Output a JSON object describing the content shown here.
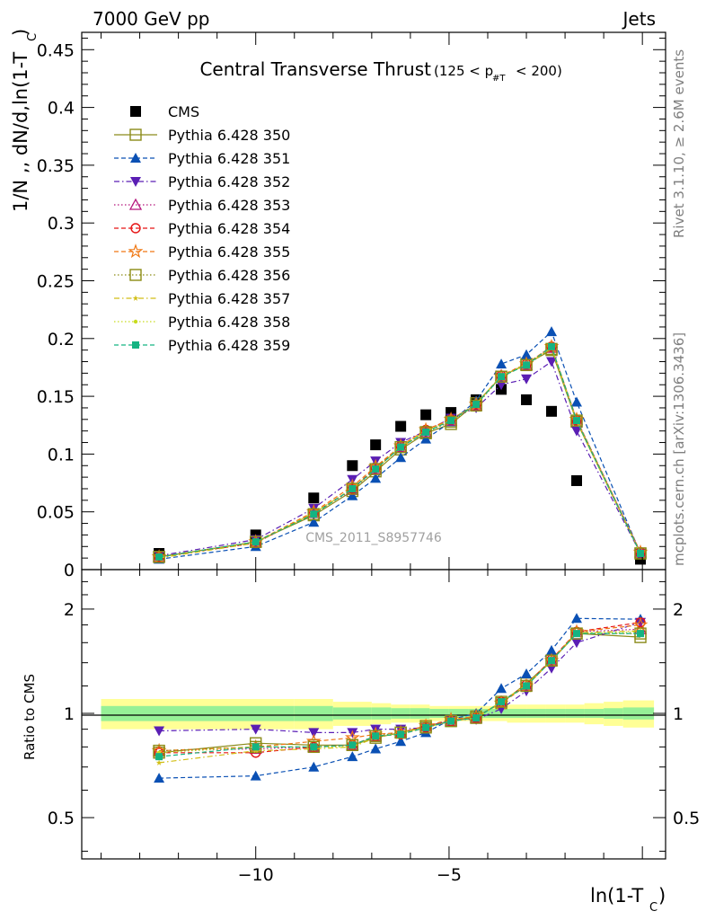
{
  "header": {
    "left": "7000 GeV pp",
    "right": "Jets",
    "side_top": "Rivet 3.1.10, ≥ 2.6M events",
    "side_bottom": "mcplots.cern.ch [arXiv:1306.3436]",
    "watermark": "CMS_2011_S8957746"
  },
  "chart_data": [
    {
      "type": "scatter",
      "title": "Central Transverse Thrust",
      "subtitle": "(125 < p#T < 200)",
      "xlabel": "ln(1-T_C)",
      "ylabel": "1/N ,, dN/d,ln(1-T_C)",
      "ylim": [
        0,
        0.465
      ],
      "xlim": [
        -14.5,
        0.6
      ],
      "yticks": [
        0,
        0.05,
        0.1,
        0.15,
        0.2,
        0.25,
        0.3,
        0.35,
        0.4,
        0.45
      ],
      "ytick_labels": [
        "0",
        "0.05",
        "0.1",
        "0.15",
        "0.2",
        "0.25",
        "0.3",
        "0.35",
        "0.4",
        "0.45"
      ],
      "x": [
        -12.5,
        -10.0,
        -8.5,
        -7.5,
        -6.9,
        -6.25,
        -5.6,
        -4.95,
        -4.3,
        -3.65,
        -3.0,
        -2.35,
        -1.7,
        -0.05
      ],
      "series": [
        {
          "name": "CMS",
          "color": "#000000",
          "marker": "square-filled",
          "line": "none",
          "values": [
            0.014,
            0.03,
            0.062,
            0.09,
            0.108,
            0.124,
            0.134,
            0.136,
            0.147,
            0.156,
            0.147,
            0.137,
            0.077,
            0.009
          ]
        },
        {
          "name": "Pythia 6.428 350",
          "color": "#8b8b1a",
          "marker": "square-open",
          "line": "solid",
          "values": [
            0.011,
            0.024,
            0.047,
            0.068,
            0.085,
            0.104,
            0.118,
            0.126,
            0.144,
            0.167,
            0.178,
            0.19,
            0.128,
            0.014
          ]
        },
        {
          "name": "Pythia 6.428 351",
          "color": "#0a50b4",
          "marker": "triangle-up",
          "line": "dashed",
          "values": [
            0.009,
            0.02,
            0.041,
            0.064,
            0.079,
            0.097,
            0.113,
            0.128,
            0.146,
            0.178,
            0.186,
            0.206,
            0.145,
            0.014
          ]
        },
        {
          "name": "Pythia 6.428 352",
          "color": "#5a1eb4",
          "marker": "triangle-down",
          "line": "dashdot",
          "values": [
            0.012,
            0.026,
            0.053,
            0.078,
            0.094,
            0.11,
            0.12,
            0.131,
            0.14,
            0.16,
            0.165,
            0.18,
            0.12,
            0.014
          ]
        },
        {
          "name": "Pythia 6.428 353",
          "color": "#b4147c",
          "marker": "triangle-open",
          "line": "dotted",
          "values": [
            0.011,
            0.024,
            0.049,
            0.069,
            0.087,
            0.106,
            0.119,
            0.129,
            0.142,
            0.168,
            0.177,
            0.192,
            0.13,
            0.015
          ]
        },
        {
          "name": "Pythia 6.428 354",
          "color": "#e61414",
          "marker": "circle-open",
          "line": "dashed",
          "values": [
            0.011,
            0.023,
            0.049,
            0.07,
            0.088,
            0.107,
            0.121,
            0.13,
            0.143,
            0.168,
            0.178,
            0.193,
            0.129,
            0.015
          ]
        },
        {
          "name": "Pythia 6.428 355",
          "color": "#f07814",
          "marker": "star-open",
          "line": "dashed",
          "values": [
            0.011,
            0.024,
            0.05,
            0.072,
            0.089,
            0.107,
            0.121,
            0.13,
            0.143,
            0.167,
            0.178,
            0.193,
            0.13,
            0.015
          ]
        },
        {
          "name": "Pythia 6.428 356",
          "color": "#8c8c14",
          "marker": "square-open",
          "line": "dotted",
          "values": [
            0.011,
            0.024,
            0.048,
            0.07,
            0.087,
            0.106,
            0.119,
            0.128,
            0.142,
            0.167,
            0.177,
            0.191,
            0.129,
            0.014
          ]
        },
        {
          "name": "Pythia 6.428 357",
          "color": "#d2be14",
          "marker": "star-small",
          "line": "dashdot",
          "values": [
            0.01,
            0.023,
            0.049,
            0.07,
            0.087,
            0.106,
            0.12,
            0.129,
            0.143,
            0.168,
            0.177,
            0.192,
            0.128,
            0.014
          ]
        },
        {
          "name": "Pythia 6.428 358",
          "color": "#c8dc1e",
          "marker": "dot",
          "line": "dotted",
          "values": [
            0.011,
            0.024,
            0.049,
            0.07,
            0.087,
            0.107,
            0.12,
            0.129,
            0.143,
            0.168,
            0.178,
            0.192,
            0.129,
            0.014
          ]
        },
        {
          "name": "Pythia 6.428 359",
          "color": "#14b482",
          "marker": "square-filled-small",
          "line": "dashed",
          "values": [
            0.011,
            0.024,
            0.048,
            0.07,
            0.087,
            0.106,
            0.119,
            0.129,
            0.143,
            0.167,
            0.177,
            0.193,
            0.129,
            0.014
          ]
        }
      ]
    },
    {
      "type": "scatter",
      "ylabel": "Ratio to CMS",
      "xlabel": "ln(1-T_C)",
      "ylim": [
        0.38,
        2.6
      ],
      "yscale": "log",
      "yticks": [
        0.5,
        1,
        2
      ],
      "ytick_labels": [
        "0.5",
        "1",
        "2"
      ],
      "xticks": [
        -10,
        -5
      ],
      "xtick_labels": [
        "−10",
        "−5"
      ],
      "bands": {
        "bin_edges": [
          -14.0,
          -9.0,
          -8.0,
          -7.0,
          -6.5,
          -6.0,
          -5.5,
          -5.0,
          -4.5,
          -4.0,
          -3.5,
          -3.0,
          -2.5,
          -2.0,
          -1.5,
          -1.0,
          -0.5,
          0.3
        ],
        "stat_lo": [
          0.95,
          0.95,
          0.96,
          0.96,
          0.965,
          0.965,
          0.97,
          0.97,
          0.97,
          0.97,
          0.97,
          0.97,
          0.97,
          0.97,
          0.97,
          0.965,
          0.96
        ],
        "stat_hi": [
          1.05,
          1.05,
          1.04,
          1.04,
          1.035,
          1.035,
          1.03,
          1.03,
          1.03,
          1.03,
          1.03,
          1.03,
          1.03,
          1.03,
          1.03,
          1.035,
          1.04
        ],
        "total_lo": [
          0.9,
          0.9,
          0.92,
          0.93,
          0.94,
          0.94,
          0.95,
          0.95,
          0.95,
          0.95,
          0.94,
          0.94,
          0.94,
          0.94,
          0.93,
          0.92,
          0.91
        ],
        "total_hi": [
          1.1,
          1.1,
          1.08,
          1.07,
          1.06,
          1.06,
          1.05,
          1.05,
          1.05,
          1.05,
          1.06,
          1.06,
          1.06,
          1.06,
          1.07,
          1.08,
          1.09
        ],
        "stat_color": "#96f096",
        "total_color": "#ffff96"
      },
      "x": [
        -12.5,
        -10.0,
        -8.5,
        -7.5,
        -6.9,
        -6.25,
        -5.6,
        -4.95,
        -4.3,
        -3.65,
        -3.0,
        -2.35,
        -1.7,
        -0.05
      ],
      "series": [
        {
          "name": "Pythia 6.428 350",
          "color": "#8b8b1a",
          "marker": "square-open",
          "line": "solid",
          "values": [
            0.77,
            0.82,
            0.81,
            0.81,
            0.85,
            0.88,
            0.92,
            0.95,
            0.98,
            1.07,
            1.22,
            1.42,
            1.7,
            1.66
          ]
        },
        {
          "name": "Pythia 6.428 351",
          "color": "#0a50b4",
          "marker": "triangle-up",
          "line": "dashed",
          "values": [
            0.65,
            0.66,
            0.7,
            0.75,
            0.79,
            0.83,
            0.88,
            0.96,
            1.0,
            1.18,
            1.3,
            1.52,
            1.88,
            1.87
          ]
        },
        {
          "name": "Pythia 6.428 352",
          "color": "#5a1eb4",
          "marker": "triangle-down",
          "line": "dashdot",
          "values": [
            0.89,
            0.9,
            0.88,
            0.88,
            0.9,
            0.9,
            0.91,
            0.96,
            0.96,
            1.03,
            1.16,
            1.35,
            1.6,
            1.83
          ]
        },
        {
          "name": "Pythia 6.428 353",
          "color": "#b4147c",
          "marker": "triangle-open",
          "line": "dotted",
          "values": [
            0.78,
            0.79,
            0.8,
            0.81,
            0.86,
            0.88,
            0.92,
            0.95,
            0.97,
            1.08,
            1.2,
            1.42,
            1.72,
            1.75
          ]
        },
        {
          "name": "Pythia 6.428 354",
          "color": "#e61414",
          "marker": "circle-open",
          "line": "dashed",
          "values": [
            0.77,
            0.77,
            0.8,
            0.81,
            0.86,
            0.87,
            0.91,
            0.95,
            0.97,
            1.08,
            1.21,
            1.43,
            1.72,
            1.83
          ]
        },
        {
          "name": "Pythia 6.428 355",
          "color": "#f07814",
          "marker": "star-open",
          "line": "dashed",
          "values": [
            0.78,
            0.8,
            0.83,
            0.85,
            0.87,
            0.88,
            0.92,
            0.96,
            0.98,
            1.07,
            1.2,
            1.42,
            1.72,
            1.8
          ]
        },
        {
          "name": "Pythia 6.428 356",
          "color": "#8c8c14",
          "marker": "square-open",
          "line": "dotted",
          "values": [
            0.78,
            0.8,
            0.8,
            0.81,
            0.86,
            0.88,
            0.91,
            0.95,
            0.97,
            1.08,
            1.2,
            1.42,
            1.7,
            1.7
          ]
        },
        {
          "name": "Pythia 6.428 357",
          "color": "#d2be14",
          "marker": "star-small",
          "line": "dashdot",
          "values": [
            0.72,
            0.78,
            0.79,
            0.8,
            0.85,
            0.88,
            0.91,
            0.95,
            0.97,
            1.08,
            1.21,
            1.42,
            1.71,
            1.73
          ]
        },
        {
          "name": "Pythia 6.428 358",
          "color": "#c8dc1e",
          "marker": "dot",
          "line": "dotted",
          "values": [
            0.77,
            0.8,
            0.8,
            0.8,
            0.86,
            0.87,
            0.91,
            0.95,
            0.97,
            1.08,
            1.2,
            1.42,
            1.7,
            1.72
          ]
        },
        {
          "name": "Pythia 6.428 359",
          "color": "#14b482",
          "marker": "square-filled-small",
          "line": "dashed",
          "values": [
            0.75,
            0.8,
            0.8,
            0.81,
            0.86,
            0.87,
            0.91,
            0.95,
            0.97,
            1.08,
            1.2,
            1.42,
            1.7,
            1.7
          ]
        }
      ]
    }
  ]
}
